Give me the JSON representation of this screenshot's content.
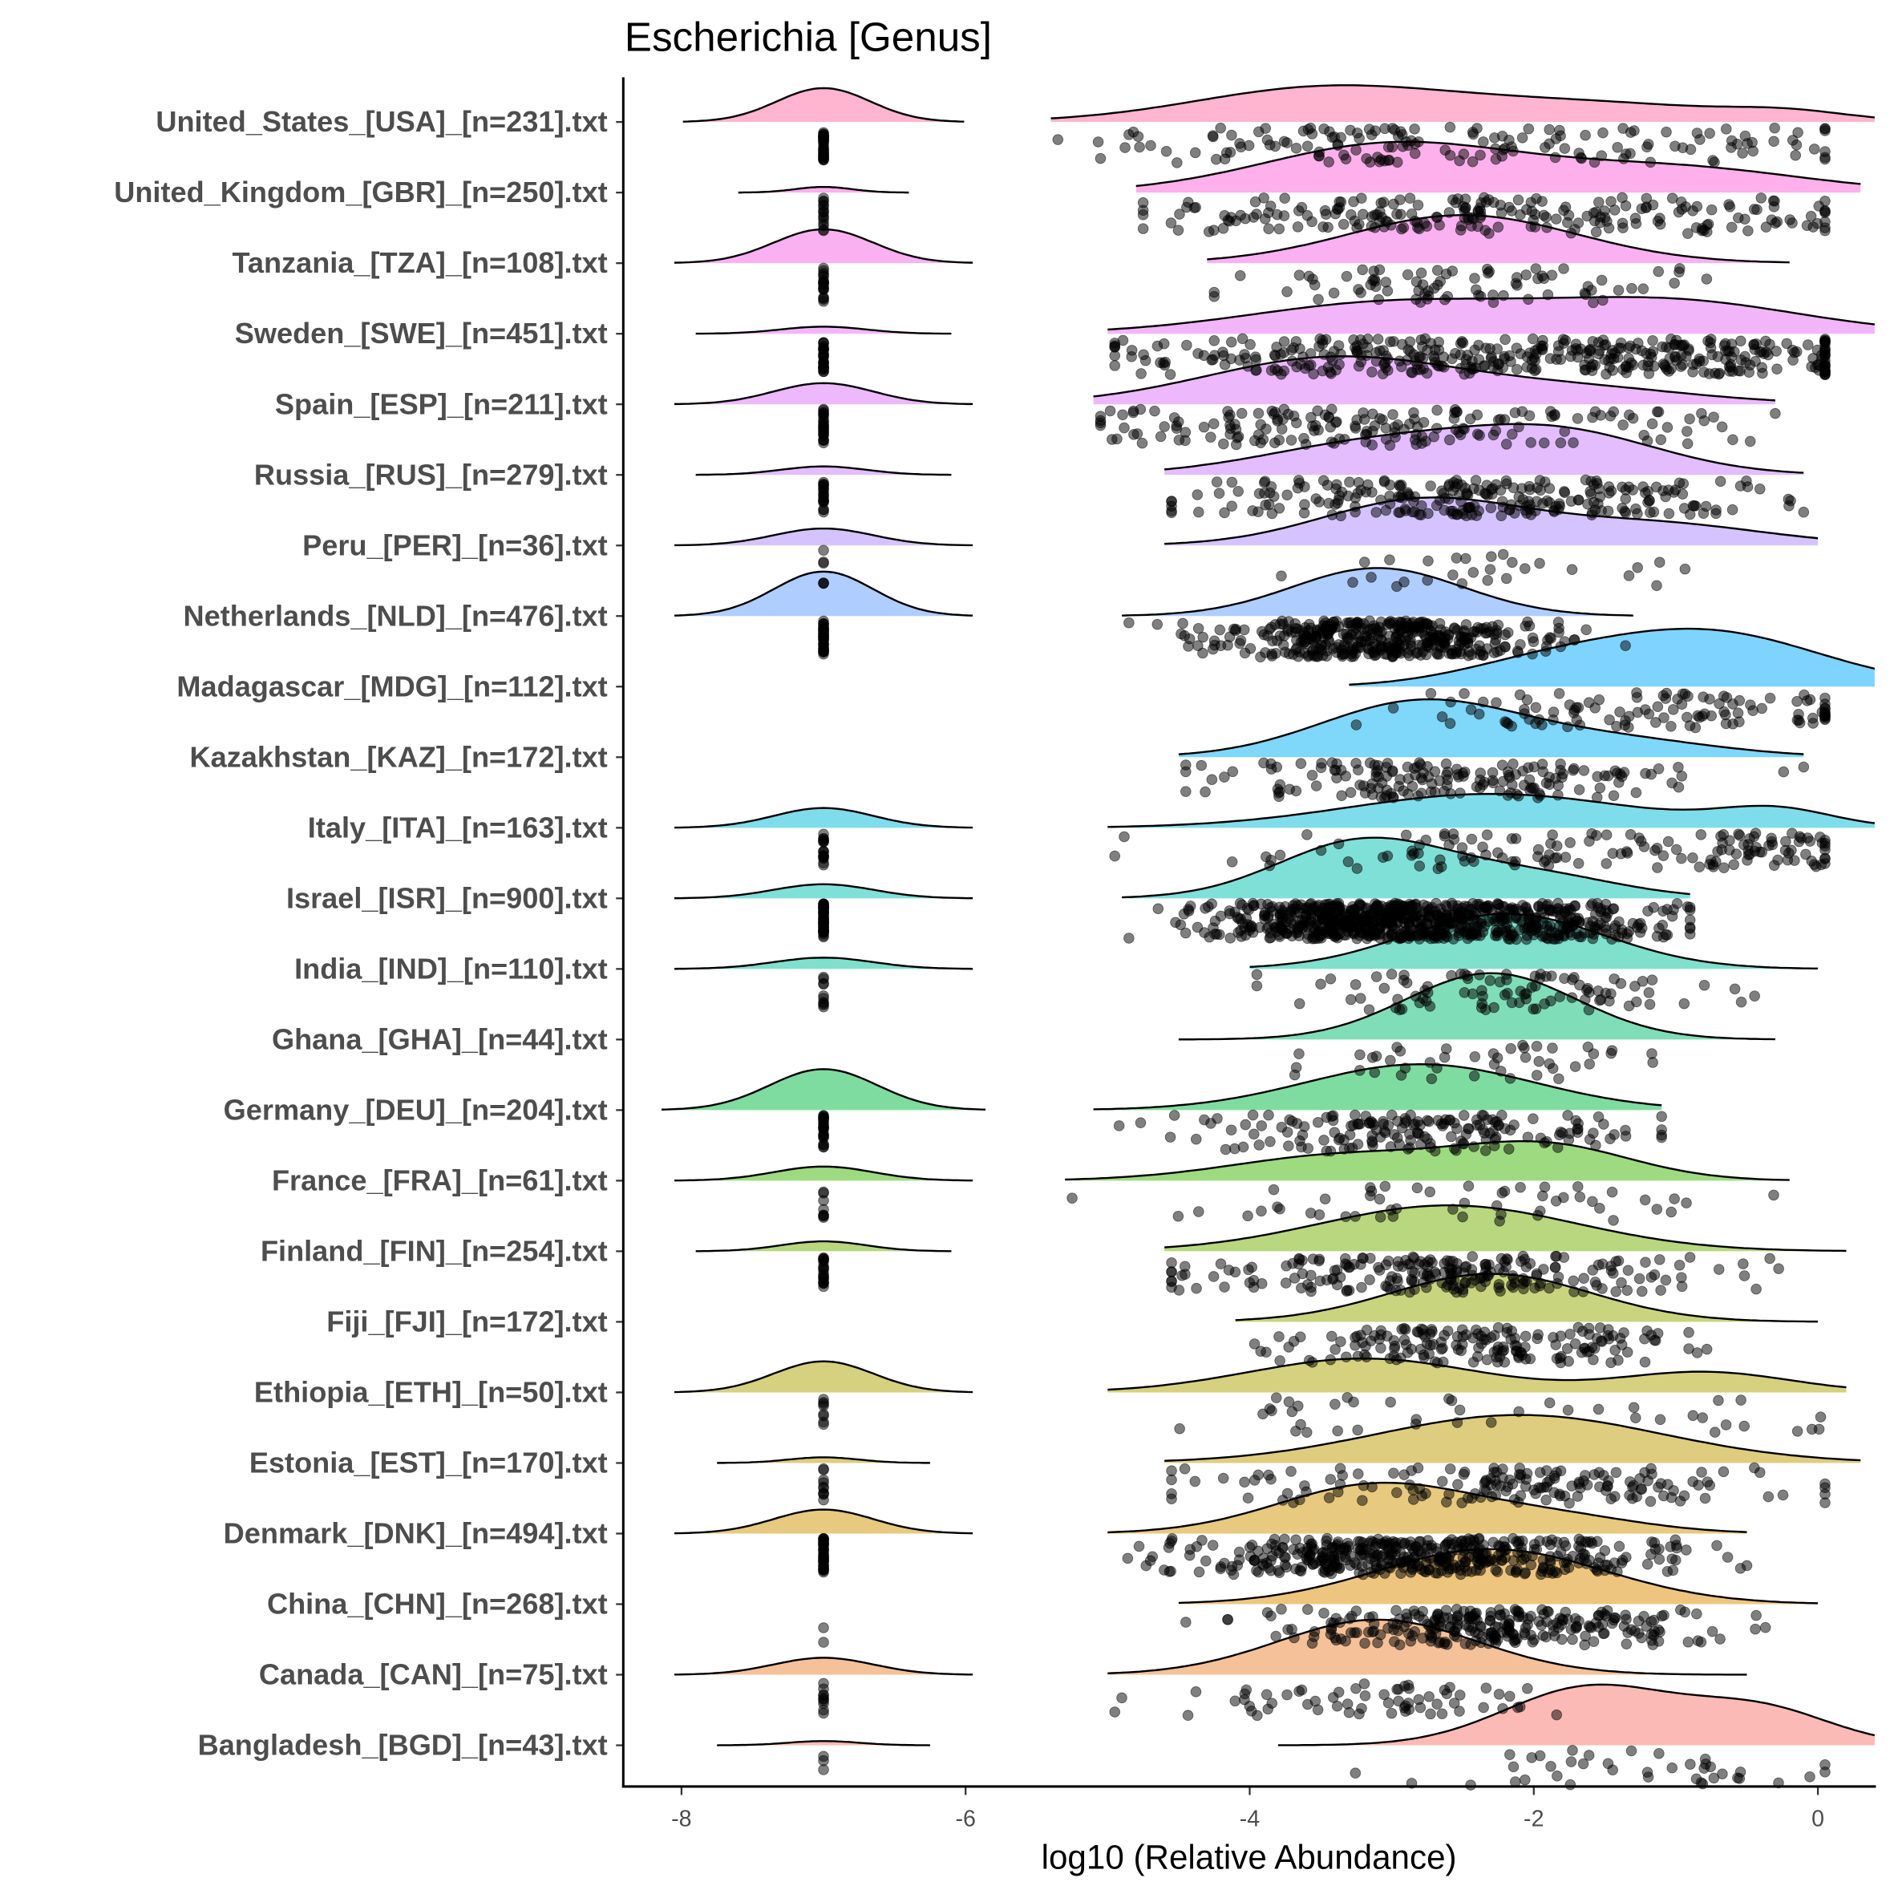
{
  "chart_data": {
    "type": "ridgeline-raincloud",
    "title": "Escherichia [Genus]",
    "xlabel": "log10 (Relative Abundance)",
    "ylabel": "",
    "xlim": [
      -8.4,
      0.4
    ],
    "xticks": [
      -8,
      -6,
      -4,
      -2,
      0
    ],
    "xtick_labels": [
      "-8",
      "-6",
      "-4",
      "-2",
      "0"
    ],
    "zero_value": -7,
    "point_color": "#000000",
    "point_alpha": 0.5,
    "groups": [
      {
        "label": "United_States_[USA]_[n=231].txt",
        "color": "#FF6C9F",
        "range": [
          -5.4,
          0.4
        ],
        "peak": 0.52,
        "comps": [
          [
            -3.5,
            0.9,
            1
          ],
          [
            -1.6,
            1.0,
            0.55
          ],
          [
            -0.2,
            0.4,
            0.2
          ]
        ],
        "zero_peak": 0.48,
        "zero_sd": 0.33,
        "n_zero": 40,
        "n_points": 160
      },
      {
        "label": "United_Kingdom_[GBR]_[n=250].txt",
        "color": "#FB61D7",
        "range": [
          -4.8,
          0.3
        ],
        "peak": 0.72,
        "comps": [
          [
            -3.0,
            0.9,
            1
          ],
          [
            -1.0,
            0.9,
            0.5
          ]
        ],
        "zero_peak": 0.08,
        "zero_sd": 0.2,
        "n_zero": 15,
        "n_points": 220
      },
      {
        "label": "Tanzania_[TZA]_[n=108].txt",
        "color": "#F564E3",
        "range": [
          -4.3,
          -0.2
        ],
        "peak": 0.68,
        "comps": [
          [
            -2.5,
            0.8,
            1
          ]
        ],
        "zero_peak": 0.48,
        "zero_sd": 0.35,
        "n_zero": 20,
        "n_points": 80
      },
      {
        "label": "Sweden_[SWE]_[n=451].txt",
        "color": "#E76BF3",
        "range": [
          -5.0,
          0.4
        ],
        "peak": 0.52,
        "comps": [
          [
            -3.0,
            1.0,
            1
          ],
          [
            -1.0,
            0.9,
            1
          ]
        ],
        "zero_peak": 0.1,
        "zero_sd": 0.3,
        "n_zero": 30,
        "n_points": 400
      },
      {
        "label": "Spain_[ESP]_[n=211].txt",
        "color": "#DC71FA",
        "range": [
          -5.1,
          -0.3
        ],
        "peak": 0.68,
        "comps": [
          [
            -3.4,
            0.9,
            1
          ],
          [
            -1.6,
            0.8,
            0.3
          ]
        ],
        "zero_peak": 0.3,
        "zero_sd": 0.35,
        "n_zero": 25,
        "n_points": 180
      },
      {
        "label": "Russia_[RUS]_[n=279].txt",
        "color": "#C77CFF",
        "range": [
          -4.6,
          -0.1
        ],
        "peak": 0.72,
        "comps": [
          [
            -3.1,
            0.8,
            0.8
          ],
          [
            -1.8,
            0.7,
            1
          ]
        ],
        "zero_peak": 0.12,
        "zero_sd": 0.3,
        "n_zero": 20,
        "n_points": 250
      },
      {
        "label": "Peru_[PER]_[n=36].txt",
        "color": "#AC88FF",
        "range": [
          -4.6,
          0.0
        ],
        "peak": 0.68,
        "comps": [
          [
            -2.8,
            0.7,
            1
          ],
          [
            -1.2,
            0.8,
            0.5
          ]
        ],
        "zero_peak": 0.24,
        "zero_sd": 0.35,
        "n_zero": 6,
        "n_points": 28
      },
      {
        "label": "Netherlands_[NLD]_[n=476].txt",
        "color": "#619CFF",
        "range": [
          -4.9,
          -1.3
        ],
        "peak": 0.68,
        "comps": [
          [
            -3.1,
            0.6,
            1
          ]
        ],
        "zero_peak": 0.63,
        "zero_sd": 0.35,
        "n_zero": 40,
        "n_points": 420
      },
      {
        "label": "Madagascar_[MDG]_[n=112].txt",
        "color": "#00A9FF",
        "range": [
          -3.3,
          0.4
        ],
        "peak": 0.82,
        "comps": [
          [
            -0.8,
            0.8,
            1
          ],
          [
            -2.0,
            0.6,
            0.3
          ]
        ],
        "zero_peak": 0,
        "zero_sd": 0.3,
        "n_zero": 0,
        "n_points": 112
      },
      {
        "label": "Kazakhstan_[KAZ]_[n=172].txt",
        "color": "#00B0F6",
        "range": [
          -4.5,
          -0.1
        ],
        "peak": 0.82,
        "comps": [
          [
            -2.8,
            0.7,
            1
          ],
          [
            -1.4,
            0.7,
            0.3
          ]
        ],
        "zero_peak": 0,
        "zero_sd": 0.3,
        "n_zero": 0,
        "n_points": 172
      },
      {
        "label": "Italy_[ITA]_[n=163].txt",
        "color": "#00BCD8",
        "range": [
          -5.0,
          0.4
        ],
        "peak": 0.48,
        "comps": [
          [
            -2.3,
            1.0,
            1
          ],
          [
            -0.3,
            0.4,
            0.5
          ]
        ],
        "zero_peak": 0.28,
        "zero_sd": 0.35,
        "n_zero": 18,
        "n_points": 145
      },
      {
        "label": "Israel_[ISR]_[n=900].txt",
        "color": "#00C1B2",
        "range": [
          -4.9,
          -0.9
        ],
        "peak": 0.86,
        "comps": [
          [
            -3.2,
            0.6,
            1
          ],
          [
            -2.0,
            0.6,
            0.4
          ]
        ],
        "zero_peak": 0.2,
        "zero_sd": 0.35,
        "n_zero": 60,
        "n_points": 800
      },
      {
        "label": "India_[IND]_[n=110].txt",
        "color": "#00C19A",
        "range": [
          -4.0,
          0.0
        ],
        "peak": 0.78,
        "comps": [
          [
            -2.2,
            0.7,
            1
          ]
        ],
        "zero_peak": 0.16,
        "zero_sd": 0.35,
        "n_zero": 10,
        "n_points": 95
      },
      {
        "label": "Ghana_[GHA]_[n=44].txt",
        "color": "#00BE70",
        "range": [
          -4.5,
          -0.3
        ],
        "peak": 0.94,
        "comps": [
          [
            -2.3,
            0.6,
            1
          ]
        ],
        "zero_peak": 0,
        "zero_sd": 0.3,
        "n_zero": 0,
        "n_points": 44
      },
      {
        "label": "Germany_[DEU]_[n=204].txt",
        "color": "#00BA42",
        "range": [
          -5.1,
          -1.1
        ],
        "peak": 0.65,
        "comps": [
          [
            -2.8,
            0.8,
            1
          ]
        ],
        "zero_peak": 0.58,
        "zero_sd": 0.38,
        "n_zero": 25,
        "n_points": 175
      },
      {
        "label": "France_[FRA]_[n=61].txt",
        "color": "#3DB600",
        "range": [
          -5.3,
          -0.2
        ],
        "peak": 0.56,
        "comps": [
          [
            -3.3,
            0.8,
            0.8
          ],
          [
            -1.9,
            0.6,
            1
          ]
        ],
        "zero_peak": 0.2,
        "zero_sd": 0.35,
        "n_zero": 8,
        "n_points": 52
      },
      {
        "label": "Finland_[FIN]_[n=254].txt",
        "color": "#72B000",
        "range": [
          -4.6,
          0.2
        ],
        "peak": 0.65,
        "comps": [
          [
            -2.6,
            0.9,
            1
          ]
        ],
        "zero_peak": 0.14,
        "zero_sd": 0.3,
        "n_zero": 20,
        "n_points": 230
      },
      {
        "label": "Fiji_[FJI]_[n=172].txt",
        "color": "#93AA00",
        "range": [
          -4.1,
          0.0
        ],
        "peak": 0.68,
        "comps": [
          [
            -2.3,
            0.7,
            1
          ]
        ],
        "zero_peak": 0,
        "zero_sd": 0.3,
        "n_zero": 0,
        "n_points": 172
      },
      {
        "label": "Ethiopia_[ETH]_[n=50].txt",
        "color": "#ABA300",
        "range": [
          -5.0,
          0.2
        ],
        "peak": 0.48,
        "comps": [
          [
            -3.2,
            0.8,
            1
          ],
          [
            -0.8,
            0.6,
            0.6
          ]
        ],
        "zero_peak": 0.44,
        "zero_sd": 0.35,
        "n_zero": 8,
        "n_points": 42
      },
      {
        "label": "Estonia_[EST]_[n=170].txt",
        "color": "#BF9C00",
        "range": [
          -4.6,
          0.3
        ],
        "peak": 0.68,
        "comps": [
          [
            -2.1,
            1.0,
            1
          ]
        ],
        "zero_peak": 0.08,
        "zero_sd": 0.25,
        "n_zero": 10,
        "n_points": 160
      },
      {
        "label": "Denmark_[DNK]_[n=494].txt",
        "color": "#D09400",
        "range": [
          -5.0,
          -0.5
        ],
        "peak": 0.72,
        "comps": [
          [
            -3.1,
            0.7,
            1
          ],
          [
            -1.8,
            0.6,
            0.3
          ]
        ],
        "zero_peak": 0.34,
        "zero_sd": 0.35,
        "n_zero": 40,
        "n_points": 450
      },
      {
        "label": "China_[CHN]_[n=268].txt",
        "color": "#DE8C00",
        "range": [
          -4.5,
          0.0
        ],
        "peak": 0.78,
        "comps": [
          [
            -2.3,
            0.8,
            1
          ]
        ],
        "zero_peak": 0,
        "zero_sd": 0.3,
        "n_zero": 2,
        "n_points": 266
      },
      {
        "label": "Canada_[CAN]_[n=75].txt",
        "color": "#EA8331",
        "range": [
          -5.0,
          -0.5
        ],
        "peak": 0.78,
        "comps": [
          [
            -3.1,
            0.7,
            1
          ]
        ],
        "zero_peak": 0.24,
        "zero_sd": 0.35,
        "n_zero": 10,
        "n_points": 65
      },
      {
        "label": "Bangladesh_[BGD]_[n=43].txt",
        "color": "#F8766D",
        "range": [
          -3.8,
          0.4
        ],
        "peak": 0.86,
        "comps": [
          [
            -1.6,
            0.6,
            1
          ],
          [
            -0.4,
            0.5,
            0.6
          ]
        ],
        "zero_peak": 0.06,
        "zero_sd": 0.25,
        "n_zero": 3,
        "n_points": 40
      }
    ]
  }
}
